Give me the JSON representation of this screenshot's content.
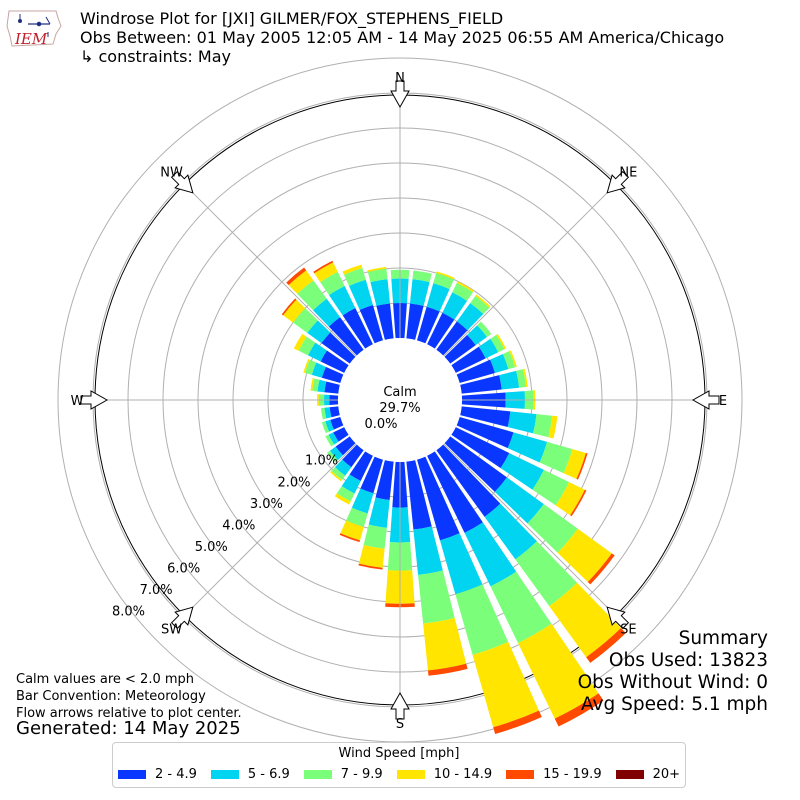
{
  "header": {
    "title": "Windrose Plot for [JXI] GILMER/FOX_STEPHENS_FIELD",
    "subtitle": "Obs Between: 01 May 2005 12:05 AM - 14 May 2025 06:55 AM America/Chicago",
    "constraints": "↳ constraints: May"
  },
  "logo": {
    "text": "IEM",
    "color": "#c0202a",
    "icon": "iowa-state-outline-icon"
  },
  "notes": {
    "line1": "Calm values are < 2.0 mph",
    "line2": "Bar Convention: Meteorology",
    "line3": "Flow arrows relative to plot center."
  },
  "generated": "Generated: 14 May 2025",
  "summary": {
    "title": "Summary",
    "obs_used": "Obs Used: 13823",
    "obs_without_wind": "Obs Without Wind: 0",
    "avg_speed": "Avg Speed: 5.1 mph"
  },
  "chart_data": {
    "type": "windrose",
    "calm_label": "Calm",
    "calm_percent": "29.7%",
    "center_label": "0.0%",
    "directions": [
      "N",
      "NE",
      "E",
      "SE",
      "S",
      "SW",
      "W",
      "NW"
    ],
    "rings": [
      1.0,
      2.0,
      3.0,
      4.0,
      5.0,
      6.0,
      7.0,
      8.0
    ],
    "ring_labels": [
      "1.0%",
      "2.0%",
      "3.0%",
      "4.0%",
      "5.0%",
      "6.0%",
      "7.0%",
      "8.0%"
    ],
    "grid": true,
    "legend_title": "Wind Speed [mph]",
    "legend_placement": "bottom",
    "speed_bins": [
      {
        "label": "2 - 4.9",
        "color": "#0a37ff"
      },
      {
        "label": "5 - 6.9",
        "color": "#00d4f0"
      },
      {
        "label": "7 - 9.9",
        "color": "#7bff7b"
      },
      {
        "label": "10 - 14.9",
        "color": "#ffe500"
      },
      {
        "label": "15 - 19.9",
        "color": "#ff4a00"
      },
      {
        "label": "20+",
        "color": "#800000"
      }
    ],
    "sectors": [
      {
        "dir": 0,
        "values": [
          1.0,
          0.7,
          0.25,
          0.0,
          0.0,
          0.0
        ]
      },
      {
        "dir": 10,
        "values": [
          1.0,
          0.7,
          0.25,
          0.0,
          0.0,
          0.0
        ]
      },
      {
        "dir": 20,
        "values": [
          1.0,
          0.7,
          0.3,
          0.05,
          0.0,
          0.0
        ]
      },
      {
        "dir": 30,
        "values": [
          1.0,
          0.65,
          0.3,
          0.05,
          0.0,
          0.0
        ]
      },
      {
        "dir": 40,
        "values": [
          1.0,
          0.65,
          0.25,
          0.05,
          0.0,
          0.0
        ]
      },
      {
        "dir": 50,
        "values": [
          0.9,
          0.4,
          0.15,
          0.0,
          0.0,
          0.0
        ]
      },
      {
        "dir": 60,
        "values": [
          0.95,
          0.4,
          0.2,
          0.05,
          0.0,
          0.0
        ]
      },
      {
        "dir": 70,
        "values": [
          1.05,
          0.4,
          0.2,
          0.05,
          0.0,
          0.0
        ]
      },
      {
        "dir": 80,
        "values": [
          1.15,
          0.5,
          0.2,
          0.05,
          0.0,
          0.0
        ]
      },
      {
        "dir": 90,
        "values": [
          1.25,
          0.55,
          0.25,
          0.05,
          0.0,
          0.0
        ]
      },
      {
        "dir": 100,
        "values": [
          1.4,
          0.75,
          0.45,
          0.15,
          0.0,
          0.0
        ]
      },
      {
        "dir": 110,
        "values": [
          1.6,
          1.0,
          0.75,
          0.4,
          0.05,
          0.0
        ]
      },
      {
        "dir": 120,
        "values": [
          1.7,
          1.1,
          0.8,
          0.5,
          0.05,
          0.0
        ]
      },
      {
        "dir": 130,
        "values": [
          2.0,
          1.3,
          1.2,
          1.2,
          0.1,
          0.0
        ]
      },
      {
        "dir": 140,
        "values": [
          2.35,
          1.5,
          1.65,
          1.8,
          0.2,
          0.0
        ]
      },
      {
        "dir": 150,
        "values": [
          2.45,
          1.7,
          1.8,
          2.4,
          0.25,
          0.0
        ]
      },
      {
        "dir": 160,
        "values": [
          2.4,
          1.6,
          1.8,
          2.15,
          0.2,
          0.0
        ]
      },
      {
        "dir": 170,
        "values": [
          1.95,
          1.3,
          1.4,
          1.35,
          0.15,
          0.0
        ]
      },
      {
        "dir": 180,
        "values": [
          1.3,
          1.0,
          0.8,
          0.95,
          0.1,
          0.0
        ]
      },
      {
        "dir": 190,
        "values": [
          1.1,
          0.8,
          0.6,
          0.55,
          0.05,
          0.0
        ]
      },
      {
        "dir": 200,
        "values": [
          1.0,
          0.6,
          0.4,
          0.4,
          0.05,
          0.0
        ]
      },
      {
        "dir": 210,
        "values": [
          0.8,
          0.4,
          0.25,
          0.1,
          0.0,
          0.0
        ]
      },
      {
        "dir": 220,
        "values": [
          0.6,
          0.3,
          0.15,
          0.05,
          0.0,
          0.0
        ]
      },
      {
        "dir": 230,
        "values": [
          0.5,
          0.2,
          0.1,
          0.0,
          0.0,
          0.0
        ]
      },
      {
        "dir": 240,
        "values": [
          0.35,
          0.15,
          0.1,
          0.0,
          0.0,
          0.0
        ]
      },
      {
        "dir": 250,
        "values": [
          0.3,
          0.15,
          0.1,
          0.0,
          0.0,
          0.0
        ]
      },
      {
        "dir": 260,
        "values": [
          0.25,
          0.15,
          0.1,
          0.0,
          0.0,
          0.0
        ]
      },
      {
        "dir": 270,
        "values": [
          0.25,
          0.15,
          0.15,
          0.05,
          0.0,
          0.0
        ]
      },
      {
        "dir": 280,
        "values": [
          0.4,
          0.2,
          0.15,
          0.05,
          0.0,
          0.0
        ]
      },
      {
        "dir": 290,
        "values": [
          0.55,
          0.3,
          0.2,
          0.05,
          0.0,
          0.0
        ]
      },
      {
        "dir": 300,
        "values": [
          0.75,
          0.4,
          0.3,
          0.15,
          0.0,
          0.0
        ]
      },
      {
        "dir": 310,
        "values": [
          1.0,
          0.5,
          0.5,
          0.35,
          0.05,
          0.0
        ]
      },
      {
        "dir": 320,
        "values": [
          1.15,
          0.65,
          0.65,
          0.35,
          0.1,
          0.0
        ]
      },
      {
        "dir": 330,
        "values": [
          1.15,
          0.7,
          0.45,
          0.3,
          0.05,
          0.0
        ]
      },
      {
        "dir": 340,
        "values": [
          1.05,
          0.75,
          0.35,
          0.1,
          0.0,
          0.0
        ]
      },
      {
        "dir": 350,
        "values": [
          1.0,
          0.7,
          0.3,
          0.05,
          0.0,
          0.0
        ]
      }
    ]
  }
}
